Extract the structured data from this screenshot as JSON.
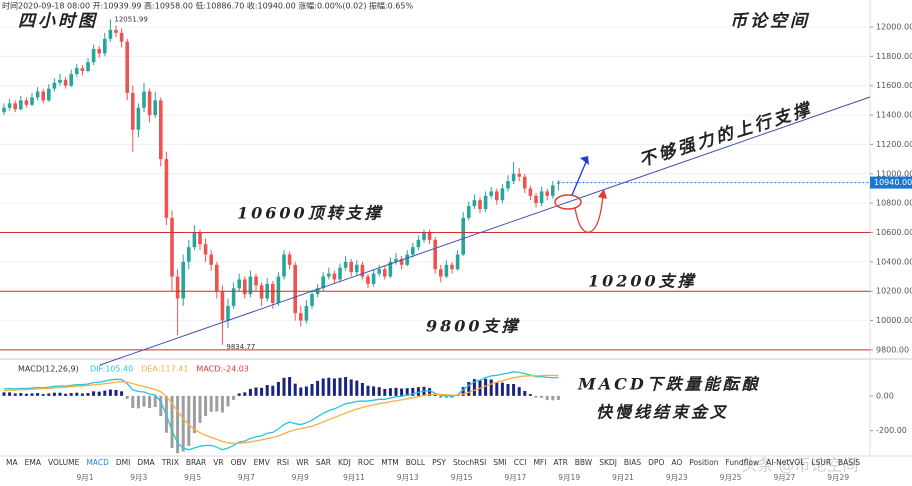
{
  "header": "时间2020-09-18 08:00 开:10939.99 高:10958.00 低:10886.70 收:10940.00 涨幅:0.00%(0.02) 振幅:0.65%",
  "tabs": [
    "MA",
    "EMA",
    "VOLUME",
    "MACD",
    "DMI",
    "DMA",
    "TRIX",
    "BRAR",
    "VR",
    "OBV",
    "EMV",
    "RSI",
    "WR",
    "SAR",
    "KDJ",
    "ROC",
    "MTM",
    "BOLL",
    "PSY",
    "StochRSI",
    "SMI",
    "CCI",
    "MFI",
    "ATR",
    "BBW",
    "SKDJ",
    "BIAS",
    "DPO",
    "AO",
    "Position",
    "Fundflow",
    "AI-NetVOL",
    "LSUR",
    "BASIS"
  ],
  "dates": [
    "9月1",
    "9月3",
    "9月5",
    "9月7",
    "9月9",
    "9月11",
    "9月13",
    "9月15",
    "9月17",
    "9月19",
    "9月21",
    "9月23",
    "9月25",
    "9月27",
    "9月29"
  ],
  "watermark": "头条 @币论空间",
  "chart_data": [
    {
      "type": "candlestick",
      "up_color": "#26a69a",
      "down_color": "#ef5350",
      "ylim": [
        9745,
        12184
      ],
      "grid": true,
      "yticks": [
        {
          "value": 9800,
          "label": "9800.00"
        },
        {
          "value": 10000,
          "label": "10000.00"
        },
        {
          "value": 10200,
          "label": "10200.00"
        },
        {
          "value": 10400,
          "label": "10400.00"
        },
        {
          "value": 10600,
          "label": "10600.00"
        },
        {
          "value": 10800,
          "label": "10800.00"
        },
        {
          "value": 11000,
          "label": "11000.00"
        },
        {
          "value": 11200,
          "label": "11200.00"
        },
        {
          "value": 11400,
          "label": "11400.00"
        },
        {
          "value": 11600,
          "label": "11600.00"
        },
        {
          "value": 11800,
          "label": "11800.00"
        },
        {
          "value": 12000,
          "label": "12000.00"
        }
      ],
      "last_price": {
        "value": 10940,
        "label": "10940.00"
      },
      "hlines": [
        10600,
        10200,
        9800
      ],
      "hline_color": "#d32f2f",
      "annotations": [
        "四小时图",
        "币论空间",
        "不够强力的上行支撑",
        "10600顶转支撑",
        "10200支撑",
        "9800支撑"
      ],
      "ohlc": [
        [
          11420,
          11480,
          11400,
          11450
        ],
        [
          11450,
          11510,
          11430,
          11480
        ],
        [
          11480,
          11500,
          11420,
          11440
        ],
        [
          11440,
          11530,
          11430,
          11500
        ],
        [
          11500,
          11520,
          11450,
          11470
        ],
        [
          11470,
          11550,
          11460,
          11520
        ],
        [
          11520,
          11590,
          11500,
          11560
        ],
        [
          11560,
          11580,
          11480,
          11500
        ],
        [
          11500,
          11610,
          11490,
          11580
        ],
        [
          11580,
          11650,
          11560,
          11620
        ],
        [
          11620,
          11680,
          11600,
          11640
        ],
        [
          11640,
          11660,
          11580,
          11600
        ],
        [
          11600,
          11710,
          11590,
          11680
        ],
        [
          11680,
          11750,
          11660,
          11720
        ],
        [
          11720,
          11740,
          11670,
          11700
        ],
        [
          11700,
          11790,
          11690,
          11760
        ],
        [
          11760,
          11880,
          11740,
          11850
        ],
        [
          11850,
          11870,
          11790,
          11820
        ],
        [
          11820,
          11960,
          11800,
          11920
        ],
        [
          11920,
          12051.99,
          11900,
          11980
        ],
        [
          11980,
          12010,
          11930,
          11960
        ],
        [
          11960,
          11990,
          11860,
          11900
        ],
        [
          11900,
          11920,
          11500,
          11550
        ],
        [
          11550,
          11600,
          11150,
          11300
        ],
        [
          11300,
          11480,
          11250,
          11450
        ],
        [
          11450,
          11620,
          11420,
          11560
        ],
        [
          11560,
          11580,
          11350,
          11400
        ],
        [
          11400,
          11560,
          11380,
          11500
        ],
        [
          11500,
          11520,
          11050,
          11100
        ],
        [
          11100,
          11150,
          10650,
          10700
        ],
        [
          10700,
          10750,
          10200,
          10300
        ],
        [
          10300,
          10350,
          9900,
          10150
        ],
        [
          10150,
          10450,
          10100,
          10400
        ],
        [
          10400,
          10550,
          10350,
          10500
        ],
        [
          10500,
          10650,
          10480,
          10600
        ],
        [
          10600,
          10620,
          10480,
          10520
        ],
        [
          10520,
          10560,
          10400,
          10450
        ],
        [
          10450,
          10480,
          10340,
          10380
        ],
        [
          10380,
          10400,
          10150,
          10200
        ],
        [
          10200,
          10240,
          9834.77,
          10000
        ],
        [
          10000,
          10150,
          9950,
          10100
        ],
        [
          10100,
          10260,
          10080,
          10220
        ],
        [
          10220,
          10320,
          10200,
          10280
        ],
        [
          10280,
          10300,
          10150,
          10180
        ],
        [
          10180,
          10340,
          10160,
          10300
        ],
        [
          10300,
          10320,
          10200,
          10240
        ],
        [
          10240,
          10260,
          10100,
          10150
        ],
        [
          10150,
          10290,
          10130,
          10250
        ],
        [
          10250,
          10270,
          10080,
          10120
        ],
        [
          10120,
          10330,
          10100,
          10300
        ],
        [
          10300,
          10480,
          10280,
          10450
        ],
        [
          10450,
          10470,
          10350,
          10380
        ],
        [
          10380,
          10400,
          10000,
          10050
        ],
        [
          10050,
          10100,
          9960,
          10000
        ],
        [
          10000,
          10140,
          9980,
          10100
        ],
        [
          10100,
          10210,
          10080,
          10180
        ],
        [
          10180,
          10250,
          10160,
          10220
        ],
        [
          10220,
          10330,
          10200,
          10300
        ],
        [
          10300,
          10360,
          10280,
          10320
        ],
        [
          10320,
          10340,
          10250,
          10280
        ],
        [
          10280,
          10390,
          10260,
          10360
        ],
        [
          10360,
          10440,
          10340,
          10400
        ],
        [
          10400,
          10420,
          10300,
          10330
        ],
        [
          10330,
          10410,
          10310,
          10380
        ],
        [
          10380,
          10400,
          10280,
          10300
        ],
        [
          10300,
          10320,
          10220,
          10250
        ],
        [
          10250,
          10350,
          10230,
          10320
        ],
        [
          10320,
          10380,
          10300,
          10350
        ],
        [
          10350,
          10370,
          10280,
          10300
        ],
        [
          10300,
          10430,
          10290,
          10400
        ],
        [
          10400,
          10460,
          10380,
          10420
        ],
        [
          10420,
          10440,
          10350,
          10380
        ],
        [
          10380,
          10480,
          10370,
          10450
        ],
        [
          10450,
          10530,
          10430,
          10500
        ],
        [
          10500,
          10580,
          10480,
          10550
        ],
        [
          10550,
          10620,
          10530,
          10600
        ],
        [
          10600,
          10620,
          10520,
          10550
        ],
        [
          10550,
          10570,
          10320,
          10350
        ],
        [
          10350,
          10380,
          10260,
          10300
        ],
        [
          10300,
          10410,
          10290,
          10380
        ],
        [
          10380,
          10400,
          10320,
          10350
        ],
        [
          10350,
          10480,
          10340,
          10450
        ],
        [
          10450,
          10740,
          10440,
          10700
        ],
        [
          10700,
          10810,
          10680,
          10780
        ],
        [
          10780,
          10860,
          10760,
          10820
        ],
        [
          10820,
          10840,
          10730,
          10760
        ],
        [
          10760,
          10880,
          10740,
          10850
        ],
        [
          10850,
          10910,
          10830,
          10880
        ],
        [
          10880,
          10900,
          10790,
          10820
        ],
        [
          10820,
          10930,
          10800,
          10900
        ],
        [
          10900,
          10990,
          10880,
          10950
        ],
        [
          10950,
          11080,
          10930,
          11000
        ],
        [
          11000,
          11040,
          10950,
          10980
        ],
        [
          10980,
          11000,
          10870,
          10900
        ],
        [
          10900,
          10920,
          10820,
          10850
        ],
        [
          10850,
          10870,
          10770,
          10800
        ],
        [
          10800,
          10910,
          10780,
          10880
        ],
        [
          10880,
          10900,
          10820,
          10850
        ],
        [
          10850,
          10950,
          10830,
          10920
        ],
        [
          10939.99,
          10958,
          10886.7,
          10940
        ]
      ]
    },
    {
      "type": "macd",
      "title": "MACD(12,26,9)",
      "ylim": [
        -340,
        206
      ],
      "yticks": [
        {
          "value": 0,
          "label": "0.00"
        },
        {
          "value": -200,
          "label": "-200.00"
        }
      ],
      "annotations": [
        "MACD下跌量能酝酿",
        "快慢线结束金叉"
      ],
      "series": [
        {
          "name": "DIF:105.40",
          "color": "#26c6da",
          "kind": "line",
          "values": [
            40,
            42,
            40,
            43,
            42,
            45,
            48,
            46,
            50,
            54,
            57,
            56,
            60,
            64,
            64,
            68,
            76,
            78,
            85,
            92,
            95,
            94,
            70,
            35,
            25,
            22,
            10,
            5,
            -35,
            -110,
            -200,
            -270,
            -300,
            -310,
            -300,
            -290,
            -285,
            -285,
            -295,
            -310,
            -300,
            -285,
            -265,
            -260,
            -245,
            -235,
            -230,
            -215,
            -210,
            -190,
            -165,
            -150,
            -160,
            -165,
            -155,
            -140,
            -120,
            -100,
            -85,
            -75,
            -60,
            -45,
            -40,
            -32,
            -30,
            -30,
            -25,
            -20,
            -20,
            -12,
            -5,
            -2,
            5,
            12,
            20,
            28,
            30,
            15,
            2,
            0,
            -2,
            5,
            35,
            60,
            80,
            90,
            105,
            115,
            118,
            125,
            130,
            138,
            135,
            128,
            120,
            110,
            110,
            106,
            104,
            105.4
          ]
        },
        {
          "name": "DEA:117.41",
          "color": "#f5b041",
          "kind": "line",
          "values": [
            30,
            32,
            33,
            35,
            36,
            38,
            40,
            41,
            43,
            45,
            48,
            50,
            52,
            55,
            57,
            60,
            63,
            66,
            70,
            74,
            78,
            81,
            79,
            70,
            61,
            53,
            45,
            37,
            23,
            -4,
            -43,
            -88,
            -130,
            -166,
            -193,
            -212,
            -227,
            -239,
            -250,
            -262,
            -270,
            -273,
            -272,
            -270,
            -265,
            -259,
            -253,
            -246,
            -239,
            -230,
            -217,
            -204,
            -195,
            -189,
            -182,
            -174,
            -163,
            -150,
            -137,
            -125,
            -112,
            -99,
            -87,
            -76,
            -67,
            -59,
            -52,
            -45,
            -40,
            -34,
            -28,
            -23,
            -17,
            -11,
            -5,
            2,
            8,
            9,
            8,
            6,
            4,
            4,
            10,
            20,
            32,
            44,
            56,
            68,
            78,
            87,
            96,
            104,
            110,
            114,
            115,
            115,
            116,
            118,
            117,
            117.41
          ]
        },
        {
          "name": "MACD:-24.03",
          "color": "#e53935",
          "kind": "histogram",
          "up_color": "#1a237e",
          "down_color": "#9e9e9e",
          "values": [
            20,
            20,
            14,
            16,
            12,
            14,
            16,
            10,
            14,
            18,
            18,
            12,
            16,
            18,
            14,
            16,
            26,
            24,
            30,
            36,
            34,
            26,
            -18,
            -70,
            -72,
            -62,
            -70,
            -64,
            -116,
            -212,
            -300,
            -330,
            -320,
            -288,
            -214,
            -156,
            -116,
            -92,
            -90,
            -96,
            -60,
            -24,
            14,
            20,
            40,
            48,
            46,
            62,
            58,
            80,
            104,
            108,
            70,
            48,
            54,
            68,
            86,
            100,
            104,
            100,
            104,
            108,
            94,
            88,
            74,
            58,
            54,
            50,
            40,
            44,
            46,
            42,
            44,
            46,
            50,
            52,
            44,
            12,
            -12,
            -12,
            -12,
            2,
            50,
            80,
            96,
            92,
            98,
            94,
            80,
            76,
            68,
            68,
            50,
            28,
            10,
            -10,
            -12,
            -24,
            -26,
            -24.03
          ]
        }
      ]
    }
  ]
}
